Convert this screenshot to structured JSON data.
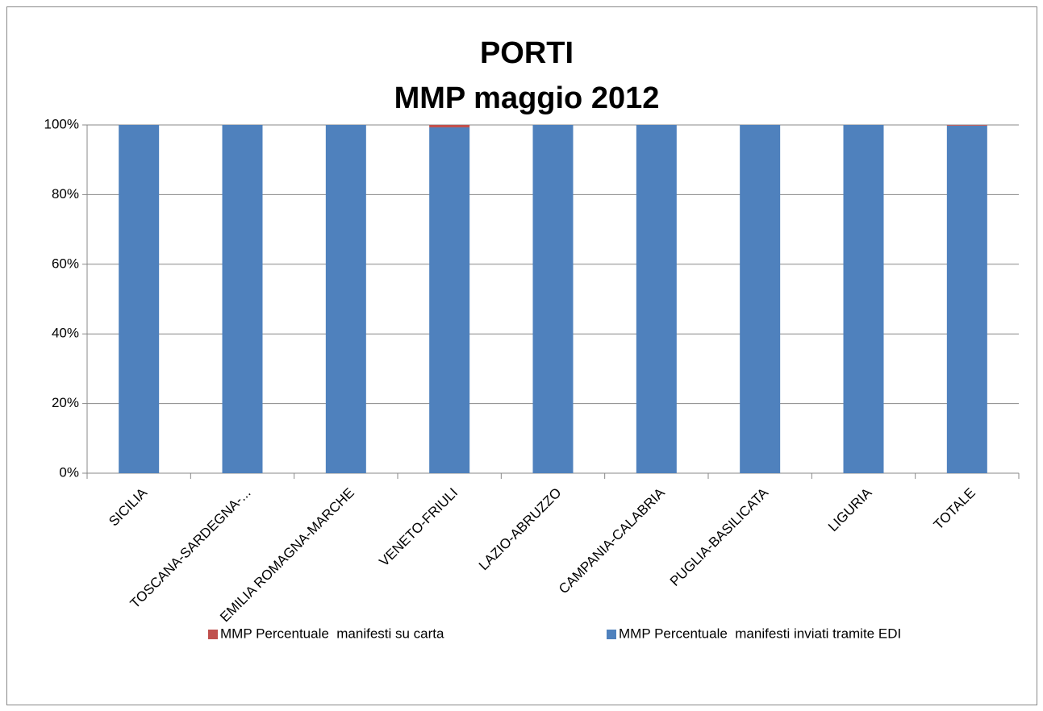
{
  "chart_data": {
    "type": "bar",
    "stacked": true,
    "title": [
      "PORTI",
      "MMP maggio 2012"
    ],
    "categories": [
      "SICILIA",
      "TOSCANA-SARDEGNA-...",
      "EMILIA ROMAGNA-MARCHE",
      "VENETO-FRIULI",
      "LAZIO-ABRUZZO",
      "CAMPANIA-CALABRIA",
      "PUGLIA-BASILICATA",
      "LIGURIA",
      "TOTALE"
    ],
    "series": [
      {
        "name": "MMP Percentuale  manifesti inviati tramite EDI",
        "color": "#4f81bd",
        "values": [
          100,
          100,
          100,
          99.3,
          100,
          100,
          100,
          100,
          99.8
        ]
      },
      {
        "name": "MMP Percentuale  manifesti su carta",
        "color": "#c0504d",
        "values": [
          0,
          0,
          0,
          0.7,
          0,
          0,
          0,
          0,
          0.2
        ]
      }
    ],
    "ylim": [
      0,
      100
    ],
    "yticks": [
      {
        "value": 0,
        "label": "0%"
      },
      {
        "value": 20,
        "label": "20%"
      },
      {
        "value": 40,
        "label": "40%"
      },
      {
        "value": 60,
        "label": "60%"
      },
      {
        "value": 80,
        "label": "80%"
      },
      {
        "value": 100,
        "label": "100%"
      }
    ],
    "grid": true,
    "legend": "bottom"
  }
}
